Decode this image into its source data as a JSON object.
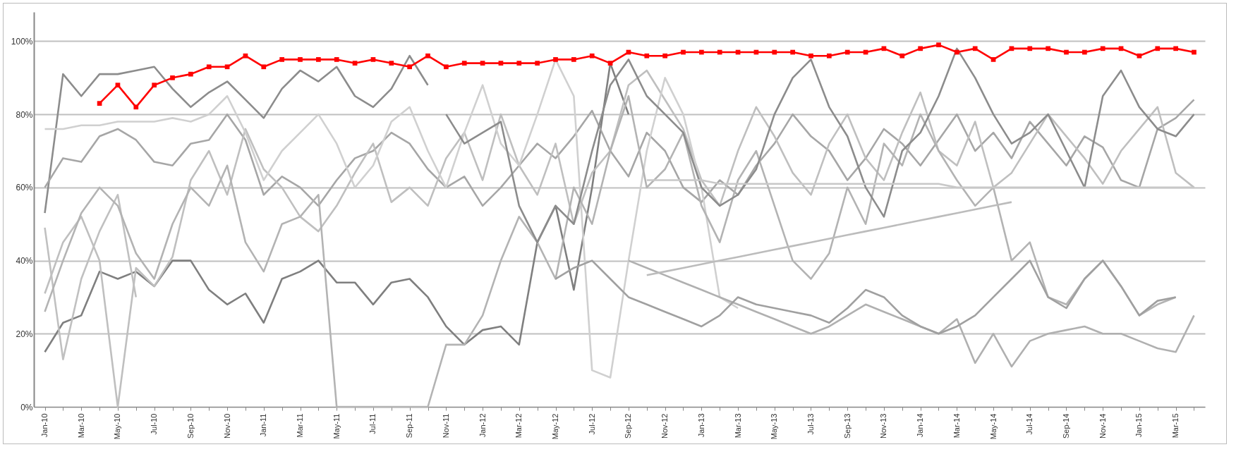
{
  "chart_data": {
    "type": "line",
    "categories": [
      "Jan-10",
      null,
      "Mar-10",
      null,
      "May-10",
      null,
      "Jul-10",
      null,
      "Sep-10",
      null,
      "Nov-10",
      null,
      "Jan-11",
      null,
      "Mar-11",
      null,
      "May-11",
      null,
      "Jul-11",
      null,
      "Sep-11",
      null,
      "Nov-11",
      null,
      "Jan-12",
      null,
      "Mar-12",
      null,
      "May-12",
      null,
      "Jul-12",
      null,
      "Sep-12",
      null,
      "Nov-12",
      null,
      "Jan-13",
      null,
      "Mar-13",
      null,
      "May-13",
      null,
      "Jul-13",
      null,
      "Sep-13",
      null,
      "Nov-13",
      null,
      "Jan-14",
      null,
      "Mar-14",
      null,
      "May-14",
      null,
      "Jul-14",
      null,
      "Sep-14",
      null,
      "Nov-14",
      null,
      "Jan-15",
      null,
      "Mar-15",
      null
    ],
    "ylim": [
      0,
      108
    ],
    "yticks": [
      {
        "value": 0,
        "label": "0%"
      },
      {
        "value": 20,
        "label": "20%"
      },
      {
        "value": 40,
        "label": "40%"
      },
      {
        "value": 60,
        "label": "60%"
      },
      {
        "value": 80,
        "label": "80%"
      },
      {
        "value": 100,
        "label": "100%"
      }
    ],
    "grid": "y",
    "line_style": "solid",
    "series": [
      {
        "color": "#8c8c8c",
        "values": [
          53,
          91,
          85,
          91,
          91,
          92,
          93,
          87,
          82,
          86,
          89,
          84,
          79,
          87,
          92,
          89,
          93,
          85,
          82,
          87,
          96,
          88,
          null,
          null,
          null,
          null,
          null,
          null,
          null,
          null,
          null,
          null,
          null,
          null,
          null,
          null,
          null,
          null,
          null,
          null,
          null,
          null,
          null,
          null,
          null,
          null,
          null,
          null,
          null,
          null,
          null,
          null,
          null,
          null,
          null,
          null,
          null,
          null,
          null,
          null,
          null,
          null,
          null,
          null
        ]
      },
      {
        "color": "#7f7f7f",
        "values": [
          15,
          23,
          25,
          37,
          35,
          37,
          33,
          40,
          40,
          32,
          28,
          31,
          23,
          35,
          37,
          40,
          34,
          34,
          28,
          34,
          35,
          30,
          22,
          17,
          21,
          22,
          17,
          45,
          55,
          32,
          60,
          94,
          80,
          null,
          null,
          null,
          null,
          null,
          null,
          null,
          null,
          null,
          null,
          null,
          null,
          null,
          null,
          null,
          null,
          null,
          null,
          null,
          null,
          null,
          null,
          null,
          null,
          null,
          null,
          null,
          null,
          null,
          null,
          null
        ]
      },
      {
        "color": "#a6a6a6",
        "values": [
          60,
          68,
          67,
          74,
          76,
          73,
          67,
          66,
          72,
          73,
          80,
          73,
          58,
          63,
          60,
          55,
          62,
          68,
          70,
          75,
          72,
          65,
          60,
          63,
          55,
          60,
          66,
          72,
          68,
          74,
          81,
          70,
          63,
          75,
          70,
          60,
          56,
          62,
          58,
          66,
          72,
          80,
          74,
          70,
          62,
          68,
          76,
          72,
          66,
          73,
          80,
          70,
          75,
          68,
          78,
          72,
          66,
          74,
          71,
          62,
          60,
          76,
          79,
          84
        ]
      },
      {
        "color": "#bfbfbf",
        "values": [
          31,
          45,
          52,
          40,
          0,
          38,
          33,
          41,
          62,
          70,
          58,
          76,
          65,
          60,
          52,
          48,
          55,
          64,
          72,
          56,
          60,
          55,
          68,
          75,
          62,
          80,
          66,
          58,
          72,
          50,
          64,
          70,
          88,
          92,
          84,
          76,
          62,
          55,
          70,
          82,
          74,
          64,
          58,
          72,
          80,
          68,
          62,
          75,
          86,
          70,
          66,
          78,
          60,
          64,
          72,
          80,
          74,
          68,
          61,
          70,
          76,
          82,
          64,
          60
        ]
      },
      {
        "color": "#d0d0d0",
        "values": [
          76,
          76,
          77,
          77,
          78,
          78,
          78,
          79,
          78,
          80,
          85,
          75,
          62,
          70,
          75,
          80,
          72,
          60,
          66,
          78,
          82,
          70,
          60,
          75,
          88,
          72,
          66,
          80,
          95,
          85,
          10,
          8,
          40,
          70,
          90,
          80,
          60,
          30,
          27,
          null,
          null,
          null,
          null,
          null,
          null,
          null,
          null,
          null,
          null,
          null,
          null,
          null,
          null,
          null,
          null,
          null,
          null,
          null,
          null,
          null,
          null,
          null,
          null,
          null
        ]
      },
      {
        "color": "#c0c0c0",
        "values": [
          49,
          13,
          35,
          48,
          58,
          30,
          null,
          null,
          null,
          null,
          null,
          null,
          null,
          null,
          null,
          null,
          null,
          null,
          null,
          null,
          null,
          null,
          null,
          null,
          null,
          null,
          null,
          null,
          null,
          null,
          null,
          null,
          null,
          null,
          null,
          null,
          null,
          null,
          null,
          null,
          null,
          null,
          null,
          null,
          null,
          null,
          null,
          null,
          null,
          null,
          null,
          null,
          null,
          null,
          null,
          null,
          null,
          null,
          null,
          null,
          null,
          null,
          null,
          null
        ]
      },
      {
        "color": "#b3b3b3",
        "values": [
          26,
          40,
          53,
          60,
          55,
          42,
          35,
          50,
          60,
          55,
          66,
          45,
          37,
          50,
          52,
          58,
          0,
          0,
          0,
          0,
          0,
          0,
          17,
          17,
          25,
          40,
          52,
          45,
          35,
          60,
          50,
          70,
          85,
          60,
          65,
          75,
          55,
          45,
          62,
          70,
          55,
          40,
          35,
          42,
          60,
          50,
          72,
          66,
          80,
          70,
          62,
          55,
          60,
          40,
          45,
          30,
          28,
          35,
          40,
          33,
          25,
          28,
          30,
          null
        ]
      },
      {
        "color": "#b0b0b0",
        "values": [
          null,
          null,
          null,
          null,
          null,
          null,
          null,
          null,
          null,
          null,
          null,
          null,
          null,
          null,
          null,
          null,
          null,
          null,
          null,
          null,
          null,
          null,
          null,
          null,
          null,
          null,
          null,
          null,
          null,
          null,
          null,
          null,
          40,
          38,
          36,
          34,
          32,
          30,
          28,
          26,
          24,
          22,
          20,
          22,
          25,
          28,
          26,
          24,
          22,
          20,
          24,
          12,
          20,
          11,
          18,
          20,
          21,
          22,
          20,
          20,
          18,
          16,
          15,
          25
        ]
      },
      {
        "color": "#a0a0a0",
        "values": [
          null,
          null,
          null,
          null,
          null,
          null,
          null,
          null,
          null,
          null,
          null,
          null,
          null,
          null,
          null,
          null,
          null,
          null,
          null,
          null,
          null,
          null,
          null,
          null,
          null,
          null,
          null,
          null,
          35,
          38,
          40,
          35,
          30,
          28,
          26,
          24,
          22,
          25,
          30,
          28,
          27,
          26,
          25,
          23,
          27,
          32,
          30,
          25,
          22,
          20,
          22,
          25,
          30,
          35,
          40,
          30,
          27,
          35,
          40,
          33,
          25,
          29,
          30,
          null
        ]
      },
      {
        "color": "#8c8c8c",
        "values": [
          null,
          null,
          null,
          null,
          null,
          null,
          null,
          null,
          null,
          null,
          null,
          null,
          null,
          null,
          null,
          null,
          null,
          null,
          null,
          null,
          null,
          null,
          80,
          72,
          75,
          78,
          55,
          45,
          55,
          50,
          70,
          88,
          95,
          85,
          80,
          75,
          60,
          55,
          58,
          65,
          80,
          90,
          95,
          82,
          74,
          60,
          52,
          70,
          75,
          85,
          98,
          90,
          80,
          72,
          75,
          80,
          70,
          60,
          85,
          92,
          82,
          76,
          74,
          80
        ]
      },
      {
        "color": "#c8c8c8",
        "values": [
          null,
          null,
          null,
          null,
          null,
          null,
          null,
          null,
          null,
          null,
          null,
          null,
          null,
          null,
          null,
          null,
          null,
          null,
          null,
          null,
          null,
          null,
          null,
          null,
          null,
          null,
          null,
          null,
          null,
          null,
          null,
          null,
          null,
          62,
          62,
          62,
          62,
          61,
          61,
          61,
          61,
          61,
          61,
          61,
          61,
          61,
          61,
          61,
          61,
          61,
          60,
          60,
          60,
          60,
          60,
          60,
          60,
          60,
          60,
          60,
          60,
          60,
          60,
          60
        ]
      },
      {
        "color": "#bcbcbc",
        "values": [
          null,
          null,
          null,
          null,
          null,
          null,
          null,
          null,
          null,
          null,
          null,
          null,
          null,
          null,
          null,
          null,
          null,
          null,
          null,
          null,
          null,
          null,
          null,
          null,
          null,
          null,
          null,
          null,
          null,
          null,
          null,
          null,
          null,
          36,
          37,
          38,
          39,
          40,
          41,
          42,
          43,
          44,
          45,
          46,
          47,
          48,
          49,
          50,
          51,
          52,
          53,
          54,
          55,
          56,
          null,
          null,
          null,
          null,
          null,
          null,
          null,
          null,
          null,
          null
        ]
      },
      {
        "color": "#ff0000",
        "marker": "square",
        "values": [
          null,
          null,
          null,
          83,
          88,
          82,
          88,
          90,
          91,
          93,
          93,
          96,
          93,
          95,
          95,
          95,
          95,
          94,
          95,
          94,
          93,
          96,
          93,
          94,
          94,
          94,
          94,
          94,
          95,
          95,
          96,
          94,
          97,
          96,
          96,
          97,
          97,
          97,
          97,
          97,
          97,
          97,
          96,
          96,
          97,
          97,
          98,
          96,
          98,
          99,
          97,
          98,
          95,
          98,
          98,
          98,
          97,
          97,
          98,
          98,
          96,
          98,
          98,
          97
        ]
      }
    ]
  }
}
